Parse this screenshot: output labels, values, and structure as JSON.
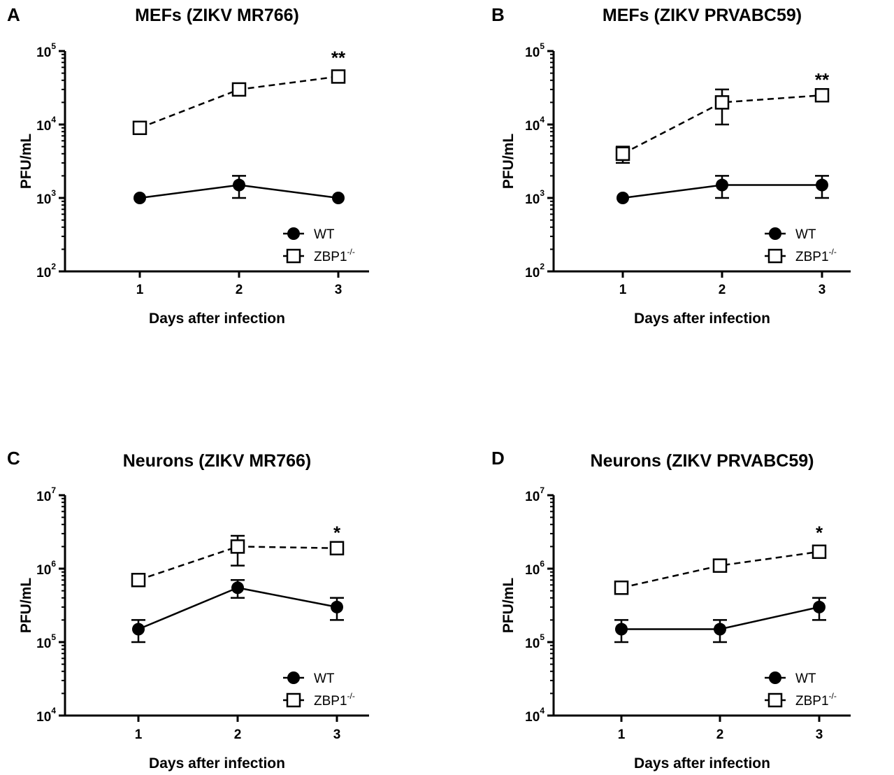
{
  "chart_data": [
    {
      "panel": "A",
      "type": "line",
      "title": "MEFs (ZIKV MR766)",
      "xlabel": "Days after infection",
      "ylabel": "PFU/mL",
      "yscale": "log",
      "ylim": [
        100,
        100000
      ],
      "ytick_exponents": [
        "2",
        "3",
        "4",
        "5"
      ],
      "x": [
        1,
        2,
        3
      ],
      "series": [
        {
          "name": "WT",
          "values": [
            1000,
            1500,
            1000
          ],
          "err_low": [
            1000,
            1000,
            1000
          ],
          "err_high": [
            1000,
            2000,
            1000
          ],
          "marker": "filled-circle",
          "line": "solid"
        },
        {
          "name": "ZBP1",
          "values": [
            9000,
            30000,
            45000
          ],
          "err_low": [
            9000,
            30000,
            40000
          ],
          "err_high": [
            9000,
            30000,
            50000
          ],
          "marker": "open-square",
          "line": "dashed"
        }
      ],
      "legend": [
        {
          "label": "WT",
          "sup": ""
        },
        {
          "label": "ZBP1",
          "sup": "-/-"
        }
      ],
      "legend_position": "bottom-right",
      "annotations": [
        {
          "text": "**",
          "x": 3,
          "series": "ZBP1"
        }
      ]
    },
    {
      "panel": "B",
      "type": "line",
      "title": "MEFs (ZIKV PRVABC59)",
      "xlabel": "Days after infection",
      "ylabel": "PFU/mL",
      "yscale": "log",
      "ylim": [
        100,
        100000
      ],
      "ytick_exponents": [
        "2",
        "3",
        "4",
        "5"
      ],
      "x": [
        1,
        2,
        3
      ],
      "series": [
        {
          "name": "WT",
          "values": [
            1000,
            1500,
            1500
          ],
          "err_low": [
            1000,
            1000,
            1000
          ],
          "err_high": [
            1000,
            2000,
            2000
          ],
          "marker": "filled-circle",
          "line": "solid"
        },
        {
          "name": "ZBP1",
          "values": [
            4000,
            20000,
            25000
          ],
          "err_low": [
            3000,
            10000,
            25000
          ],
          "err_high": [
            5000,
            30000,
            25000
          ],
          "marker": "open-square",
          "line": "dashed"
        }
      ],
      "legend": [
        {
          "label": "WT",
          "sup": ""
        },
        {
          "label": "ZBP1",
          "sup": "-/-"
        }
      ],
      "legend_position": "bottom-right",
      "annotations": [
        {
          "text": "**",
          "x": 3,
          "series": "ZBP1"
        }
      ]
    },
    {
      "panel": "C",
      "type": "line",
      "title": "Neurons (ZIKV MR766)",
      "xlabel": "Days after infection",
      "ylabel": "PFU/mL",
      "yscale": "log",
      "ylim": [
        10000,
        10000000
      ],
      "ytick_exponents": [
        "4",
        "5",
        "6",
        "7"
      ],
      "x": [
        1,
        2,
        3
      ],
      "series": [
        {
          "name": "WT",
          "values": [
            150000,
            550000,
            300000
          ],
          "err_low": [
            100000,
            400000,
            200000
          ],
          "err_high": [
            200000,
            700000,
            400000
          ],
          "marker": "filled-circle",
          "line": "solid"
        },
        {
          "name": "ZBP1",
          "values": [
            700000,
            2000000,
            1900000
          ],
          "err_low": [
            700000,
            1100000,
            1900000
          ],
          "err_high": [
            700000,
            2800000,
            1900000
          ],
          "marker": "open-square",
          "line": "dashed"
        }
      ],
      "legend": [
        {
          "label": "WT",
          "sup": ""
        },
        {
          "label": "ZBP1",
          "sup": "-/-"
        }
      ],
      "legend_position": "bottom-right",
      "annotations": [
        {
          "text": "*",
          "x": 3,
          "series": "ZBP1"
        }
      ]
    },
    {
      "panel": "D",
      "type": "line",
      "title": "Neurons (ZIKV PRVABC59)",
      "xlabel": "Days after infection",
      "ylabel": "PFU/mL",
      "yscale": "log",
      "ylim": [
        10000,
        10000000
      ],
      "ytick_exponents": [
        "4",
        "5",
        "6",
        "7"
      ],
      "x": [
        1,
        2,
        3
      ],
      "series": [
        {
          "name": "WT",
          "values": [
            150000,
            150000,
            300000
          ],
          "err_low": [
            100000,
            100000,
            200000
          ],
          "err_high": [
            200000,
            200000,
            400000
          ],
          "marker": "filled-circle",
          "line": "solid"
        },
        {
          "name": "ZBP1",
          "values": [
            550000,
            1100000,
            1700000
          ],
          "err_low": [
            550000,
            1100000,
            1500000
          ],
          "err_high": [
            550000,
            1100000,
            1900000
          ],
          "marker": "open-square",
          "line": "dashed"
        }
      ],
      "legend": [
        {
          "label": "WT",
          "sup": ""
        },
        {
          "label": "ZBP1",
          "sup": "-/-"
        }
      ],
      "legend_position": "bottom-right",
      "annotations": [
        {
          "text": "*",
          "x": 3,
          "series": "ZBP1"
        }
      ]
    }
  ]
}
